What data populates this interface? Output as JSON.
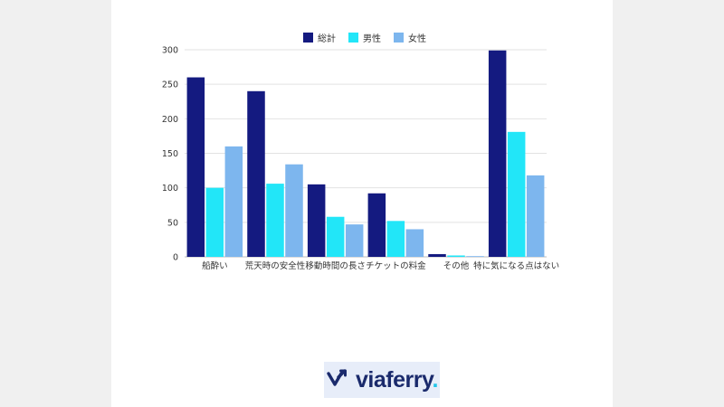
{
  "chart_data": {
    "type": "bar",
    "categories": [
      "船酔い",
      "荒天時の安全性",
      "移動時間の長さ",
      "チケットの料金",
      "その他",
      "特に気になる点はない"
    ],
    "series": [
      {
        "name": "総計",
        "color": "#141a80",
        "values": [
          260,
          240,
          105,
          92,
          4,
          299
        ]
      },
      {
        "name": "男性",
        "color": "#22e6f8",
        "values": [
          100,
          106,
          58,
          52,
          2,
          181
        ]
      },
      {
        "name": "女性",
        "color": "#7db6ee",
        "values": [
          160,
          134,
          47,
          40,
          1,
          118
        ]
      }
    ],
    "yticks": [
      0,
      50,
      100,
      150,
      200,
      250,
      300
    ],
    "ylim": [
      0,
      300
    ],
    "grid": true,
    "legend_position": "top-center"
  },
  "logo": {
    "brand": "viaferry",
    "dot": ".",
    "icon": "viaferry-arrows-icon"
  }
}
